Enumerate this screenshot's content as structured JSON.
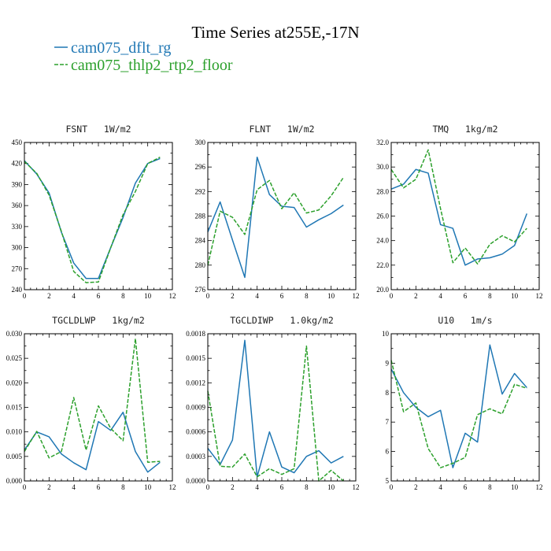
{
  "figure": {
    "title": "Time Series at255E,-17N",
    "legend": [
      {
        "label": "cam075_dflt_rg",
        "color": "#1f77b4",
        "dash": "solid"
      },
      {
        "label": "cam075_thlp2_rtp2_floor",
        "color": "#2ca02c",
        "dash": "dashed"
      }
    ]
  },
  "chart_data": [
    {
      "type": "line",
      "title": "FSNT   1W/m2",
      "x": [
        0,
        1,
        2,
        3,
        4,
        5,
        6,
        7,
        8,
        9,
        10,
        11
      ],
      "xlim": [
        0,
        12
      ],
      "xticks": [
        "0",
        "2",
        "4",
        "6",
        "8",
        "10",
        "12"
      ],
      "xtick_values": [
        0,
        2,
        4,
        6,
        8,
        10,
        12
      ],
      "ylim": [
        240,
        450
      ],
      "yticks": [
        "240",
        "270",
        "300",
        "330",
        "360",
        "390",
        "420",
        "450"
      ],
      "ytick_values": [
        240,
        270,
        300,
        330,
        360,
        390,
        420,
        450
      ],
      "series": [
        {
          "name": "cam075_dflt_rg",
          "values": [
            424,
            405,
            378,
            322,
            278,
            256,
            256,
            300,
            343,
            392,
            420,
            427
          ]
        },
        {
          "name": "cam075_thlp2_rtp2_floor",
          "values": [
            423,
            406,
            375,
            323,
            266,
            250,
            251,
            300,
            347,
            380,
            420,
            429
          ]
        }
      ]
    },
    {
      "type": "line",
      "title": "FLNT   1W/m2",
      "x": [
        0,
        1,
        2,
        3,
        4,
        5,
        6,
        7,
        8,
        9,
        10,
        11
      ],
      "xlim": [
        0,
        12
      ],
      "xticks": [
        "0",
        "2",
        "4",
        "6",
        "8",
        "10",
        "12"
      ],
      "xtick_values": [
        0,
        2,
        4,
        6,
        8,
        10,
        12
      ],
      "ylim": [
        276,
        300
      ],
      "yticks": [
        "276",
        "280",
        "284",
        "288",
        "292",
        "296",
        "300"
      ],
      "ytick_values": [
        276,
        280,
        284,
        288,
        292,
        296,
        300
      ],
      "series": [
        {
          "name": "cam075_dflt_rg",
          "values": [
            285.4,
            290.3,
            284.1,
            278.0,
            297.6,
            291.5,
            289.6,
            289.4,
            286.2,
            287.4,
            288.4,
            289.8
          ]
        },
        {
          "name": "cam075_thlp2_rtp2_floor",
          "values": [
            280.0,
            288.8,
            287.8,
            285.0,
            292.3,
            293.8,
            289.2,
            291.8,
            288.5,
            289.0,
            291.3,
            294.3
          ]
        }
      ]
    },
    {
      "type": "line",
      "title": "TMQ   1kg/m2",
      "x": [
        0,
        1,
        2,
        3,
        4,
        5,
        6,
        7,
        8,
        9,
        10,
        11
      ],
      "xlim": [
        0,
        12
      ],
      "xticks": [
        "0",
        "2",
        "4",
        "6",
        "8",
        "10",
        "12"
      ],
      "xtick_values": [
        0,
        2,
        4,
        6,
        8,
        10,
        12
      ],
      "ylim": [
        20,
        32
      ],
      "yticks": [
        "20.0",
        "22.0",
        "24.0",
        "26.0",
        "28.0",
        "30.0",
        "32.0"
      ],
      "ytick_values": [
        20,
        22,
        24,
        26,
        28,
        30,
        32
      ],
      "series": [
        {
          "name": "cam075_dflt_rg",
          "values": [
            28.2,
            28.6,
            29.8,
            29.5,
            25.3,
            25.0,
            22.0,
            22.5,
            22.6,
            22.9,
            23.6,
            26.2
          ]
        },
        {
          "name": "cam075_thlp2_rtp2_floor",
          "values": [
            29.8,
            28.3,
            29.0,
            31.4,
            26.6,
            22.2,
            23.4,
            22.1,
            23.7,
            24.4,
            23.9,
            25.0
          ]
        }
      ]
    },
    {
      "type": "line",
      "title": "TGCLDLWP   1kg/m2",
      "x": [
        0,
        1,
        2,
        3,
        4,
        5,
        6,
        7,
        8,
        9,
        10,
        11
      ],
      "xlim": [
        0,
        12
      ],
      "xticks": [
        "0",
        "2",
        "4",
        "6",
        "8",
        "10",
        "12"
      ],
      "xtick_values": [
        0,
        2,
        4,
        6,
        8,
        10,
        12
      ],
      "ylim": [
        0,
        0.03
      ],
      "yticks": [
        "0.000",
        "0.005",
        "0.010",
        "0.015",
        "0.020",
        "0.025",
        "0.030"
      ],
      "ytick_values": [
        0,
        0.005,
        0.01,
        0.015,
        0.02,
        0.025,
        0.03
      ],
      "series": [
        {
          "name": "cam075_dflt_rg",
          "values": [
            0.0063,
            0.01,
            0.009,
            0.0055,
            0.0037,
            0.0023,
            0.0121,
            0.0103,
            0.014,
            0.006,
            0.0018,
            0.0038
          ]
        },
        {
          "name": "cam075_thlp2_rtp2_floor",
          "values": [
            0.006,
            0.0101,
            0.0047,
            0.006,
            0.017,
            0.0063,
            0.0153,
            0.0107,
            0.0082,
            0.029,
            0.0038,
            0.004
          ]
        }
      ]
    },
    {
      "type": "line",
      "title": "TGCLDIWP   1.0kg/m2",
      "x": [
        0,
        1,
        2,
        3,
        4,
        5,
        6,
        7,
        8,
        9,
        10,
        11
      ],
      "xlim": [
        0,
        12
      ],
      "xticks": [
        "0",
        "2",
        "4",
        "6",
        "8",
        "10",
        "12"
      ],
      "xtick_values": [
        0,
        2,
        4,
        6,
        8,
        10,
        12
      ],
      "ylim": [
        0,
        0.0018
      ],
      "yticks": [
        "0.0000",
        "0.0003",
        "0.0006",
        "0.0009",
        "0.0012",
        "0.0015",
        "0.0018"
      ],
      "ytick_values": [
        0,
        0.0003,
        0.0006,
        0.0009,
        0.0012,
        0.0015,
        0.0018
      ],
      "series": [
        {
          "name": "cam075_dflt_rg",
          "values": [
            0.0004,
            0.0002,
            0.0005,
            0.00172,
            5e-05,
            0.0006,
            0.00017,
            0.0001,
            0.0003,
            0.00037,
            0.00022,
            0.0003
          ]
        },
        {
          "name": "cam075_thlp2_rtp2_floor",
          "values": [
            0.0011,
            0.00018,
            0.00017,
            0.00033,
            5e-05,
            0.00015,
            8e-05,
            0.00015,
            0.00165,
            0.0,
            0.00013,
            0.0
          ]
        }
      ]
    },
    {
      "type": "line",
      "title": "U10   1m/s",
      "x": [
        0,
        1,
        2,
        3,
        4,
        5,
        6,
        7,
        8,
        9,
        10,
        11
      ],
      "xlim": [
        0,
        12
      ],
      "xticks": [
        "0",
        "2",
        "4",
        "6",
        "8",
        "10",
        "12"
      ],
      "xtick_values": [
        0,
        2,
        4,
        6,
        8,
        10,
        12
      ],
      "ylim": [
        5,
        10
      ],
      "yticks": [
        "5",
        "6",
        "7",
        "8",
        "9",
        "10"
      ],
      "ytick_values": [
        5,
        6,
        7,
        8,
        9,
        10
      ],
      "series": [
        {
          "name": "cam075_dflt_rg",
          "values": [
            8.8,
            8.0,
            7.5,
            7.18,
            7.4,
            5.45,
            6.62,
            6.32,
            9.62,
            7.95,
            8.65,
            8.17
          ]
        },
        {
          "name": "cam075_thlp2_rtp2_floor",
          "values": [
            9.1,
            7.35,
            7.65,
            6.1,
            5.45,
            5.6,
            5.8,
            7.25,
            7.45,
            7.28,
            8.28,
            8.15
          ]
        }
      ]
    }
  ]
}
